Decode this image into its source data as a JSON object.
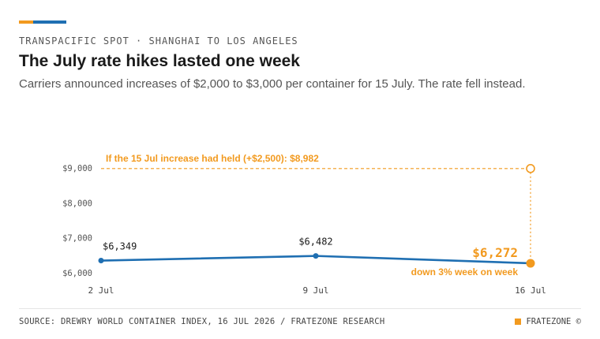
{
  "header": {
    "kicker": "TRANSPACIFIC SPOT · SHANGHAI TO LOS ANGELES",
    "title": "The July rate hikes lasted one week",
    "subtitle": "Carriers announced increases of $2,000 to $3,000 per container for 15 July. The rate fell instead."
  },
  "footer": {
    "source": "SOURCE: DREWRY WORLD CONTAINER INDEX, 16 JUL 2026 / FRATEZONE RESEARCH",
    "brand": "FRATEZONE ©"
  },
  "colors": {
    "series": "#1f6fb2",
    "accent": "#f29a1f",
    "text": "#1a1a1a",
    "grid": "#c9c9c9"
  },
  "chart_data": {
    "type": "line",
    "x": [
      "2 Jul",
      "9 Jul",
      "16 Jul"
    ],
    "series": [
      {
        "values": [
          6349,
          6482,
          6272
        ],
        "labels": [
          "$6,349",
          "$6,482",
          "$6,272"
        ]
      }
    ],
    "ylim": [
      6000,
      9000
    ],
    "yticks": [
      6000,
      7000,
      8000,
      9000
    ],
    "ytick_labels": [
      "$6,000",
      "$7,000",
      "$8,000",
      "$9,000"
    ],
    "grid": false,
    "reference": {
      "value": 8982,
      "label": "If the 15 Jul increase had held (+$2,500): $8,982"
    },
    "annotation": "down 3% week on week"
  }
}
